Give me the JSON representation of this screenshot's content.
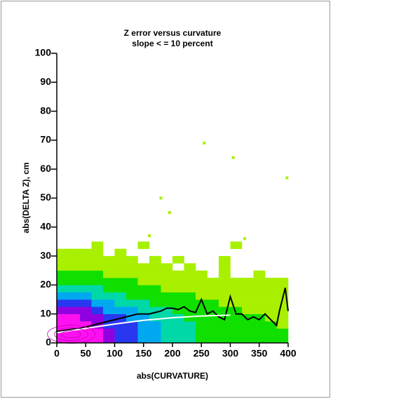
{
  "chart_data": [
    {
      "type": "heatmap",
      "title": "Z error versus curvature",
      "subtitle": "slope < = 10 percent",
      "xlabel": "abs(CURVATURE)",
      "ylabel": "abs(DELTA Z), cm",
      "xlim": [
        0,
        400
      ],
      "ylim": [
        0,
        100
      ],
      "xticks": [
        0,
        50,
        100,
        150,
        200,
        250,
        300,
        350,
        400
      ],
      "yticks": [
        0,
        10,
        20,
        30,
        40,
        50,
        60,
        70,
        80,
        90,
        100
      ],
      "x_bins": [
        0,
        20,
        40,
        60,
        80,
        100,
        120,
        140,
        160,
        180,
        200,
        220,
        240,
        260,
        280,
        300,
        320,
        340,
        360,
        380,
        400
      ],
      "y_bins": [
        0,
        2.5,
        5,
        7.5,
        10,
        12.5,
        15,
        17.5,
        20,
        22.5,
        25,
        27.5,
        30,
        32.5,
        35
      ],
      "color_levels": [
        {
          "min": 1,
          "color": "#a8f000"
        },
        {
          "min": 4,
          "color": "#10e000"
        },
        {
          "min": 9,
          "color": "#00d8a8"
        },
        {
          "min": 16,
          "color": "#00a8f0"
        },
        {
          "min": 26,
          "color": "#2838f0"
        },
        {
          "min": 41,
          "color": "#9000e0"
        },
        {
          "min": 71,
          "color": "#ff10f0"
        }
      ],
      "z": [
        [
          100,
          100,
          95,
          80,
          50,
          35,
          30,
          25,
          20,
          15,
          12,
          10,
          8,
          8,
          6,
          6,
          5,
          5,
          4,
          4
        ],
        [
          100,
          100,
          95,
          75,
          45,
          32,
          28,
          24,
          20,
          15,
          12,
          10,
          8,
          8,
          6,
          6,
          5,
          5,
          4,
          4
        ],
        [
          95,
          95,
          85,
          60,
          40,
          30,
          26,
          22,
          18,
          14,
          11,
          9,
          8,
          7,
          6,
          5,
          5,
          4,
          4,
          3
        ],
        [
          85,
          85,
          70,
          45,
          32,
          26,
          22,
          18,
          15,
          12,
          10,
          8,
          7,
          6,
          5,
          5,
          4,
          4,
          3,
          3
        ],
        [
          60,
          60,
          45,
          32,
          25,
          20,
          17,
          15,
          12,
          10,
          8,
          7,
          6,
          5,
          4,
          4,
          3,
          3,
          3,
          2
        ],
        [
          35,
          35,
          28,
          22,
          18,
          15,
          12,
          10,
          8,
          7,
          6,
          5,
          4,
          4,
          3,
          3,
          3,
          2,
          2,
          2
        ],
        [
          20,
          22,
          18,
          15,
          12,
          10,
          8,
          7,
          6,
          5,
          4,
          4,
          3,
          3,
          2,
          2,
          2,
          2,
          2,
          1
        ],
        [
          12,
          13,
          11,
          9,
          8,
          7,
          6,
          5,
          4,
          3,
          3,
          3,
          2,
          2,
          2,
          2,
          1,
          1,
          1,
          1
        ],
        [
          7,
          8,
          7,
          6,
          5,
          4,
          4,
          3,
          3,
          2,
          2,
          2,
          1,
          1,
          1,
          1,
          1,
          1,
          1,
          1
        ],
        [
          4,
          5,
          4,
          4,
          3,
          3,
          2,
          2,
          2,
          1,
          1,
          1,
          1,
          0,
          1,
          0,
          0,
          1,
          0,
          0
        ],
        [
          2,
          3,
          3,
          2,
          2,
          2,
          1,
          1,
          1,
          1,
          0,
          1,
          0,
          0,
          1,
          0,
          0,
          0,
          0,
          0
        ],
        [
          1,
          2,
          2,
          1,
          1,
          1,
          1,
          0,
          1,
          0,
          1,
          0,
          0,
          0,
          1,
          0,
          0,
          0,
          0,
          0
        ],
        [
          1,
          1,
          1,
          1,
          0,
          1,
          0,
          0,
          0,
          0,
          0,
          0,
          0,
          0,
          0,
          0,
          0,
          0,
          0,
          0
        ],
        [
          0,
          0,
          0,
          1,
          0,
          0,
          0,
          1,
          0,
          0,
          0,
          0,
          0,
          0,
          0,
          1,
          0,
          0,
          0,
          0
        ]
      ]
    },
    {
      "type": "line",
      "series": [
        {
          "color": "#000000",
          "x": [
            0,
            10,
            20,
            30,
            40,
            50,
            60,
            70,
            80,
            90,
            100,
            110,
            120,
            130,
            140,
            150,
            160,
            170,
            180,
            190,
            200,
            210,
            220,
            230,
            240,
            250,
            260,
            270,
            280,
            290,
            300,
            310,
            320,
            330,
            340,
            350,
            360,
            370,
            380,
            385,
            395,
            400
          ],
          "values": [
            4,
            4.2,
            4.5,
            4.8,
            5,
            5.5,
            6,
            6.5,
            7,
            7.5,
            8,
            8.5,
            9,
            9.5,
            10,
            10,
            10,
            10.5,
            11,
            12,
            12,
            11.5,
            12.5,
            11,
            10.5,
            15,
            10,
            11,
            9,
            8,
            16,
            10,
            10,
            8,
            9,
            8,
            10,
            8,
            6,
            11,
            19,
            11
          ]
        },
        {
          "color": "#ffffff",
          "x": [
            0,
            50,
            100,
            150,
            200,
            250,
            300
          ],
          "values": [
            3.5,
            5,
            6.5,
            7.8,
            8.7,
            9.3,
            9.6
          ]
        }
      ]
    },
    {
      "type": "scatter",
      "color": "#a8f000",
      "x": [
        255,
        305,
        398,
        180,
        195,
        160,
        325
      ],
      "values": [
        69,
        64,
        57,
        50,
        45,
        37,
        36
      ]
    }
  ]
}
